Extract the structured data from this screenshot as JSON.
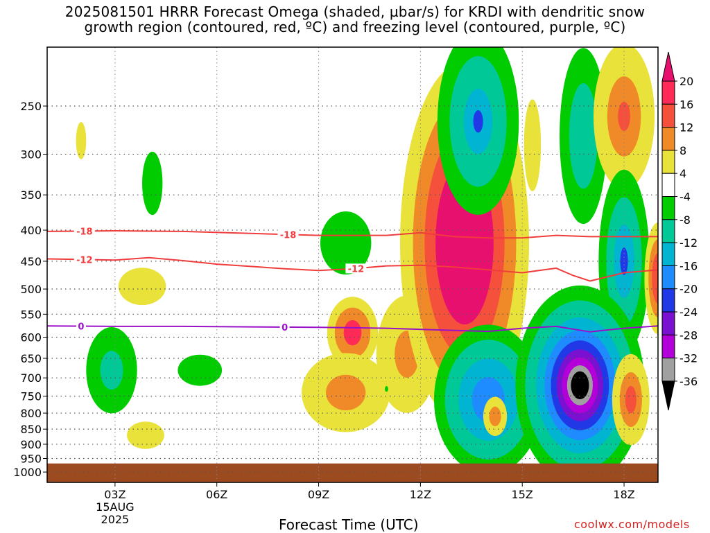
{
  "title": {
    "line1": "2025081501 HRRR Forecast Omega (shaded, µbar/s) for KRDI with dendritic snow",
    "line2": "growth region (contoured, red, ºC) and freezing level (contoured, purple, ºC)"
  },
  "credit": "coolwx.com/models",
  "chart_data": {
    "type": "heatmap",
    "title": "2025081501 HRRR Forecast Omega (shaded, µbar/s) for KRDI with dendritic snow growth region (contoured, red, ºC) and freezing level (contoured, purple, ºC)",
    "xlabel": "Forecast Time (UTC)",
    "ylabel": "",
    "x_range_hours": [
      1,
      19
    ],
    "y_range_mb": [
      200,
      1040
    ],
    "y_scale": "log",
    "grid": true,
    "x_ticks": [
      {
        "hour": 3,
        "label": "03Z",
        "sub1": "15AUG",
        "sub2": "2025"
      },
      {
        "hour": 6,
        "label": "06Z"
      },
      {
        "hour": 9,
        "label": "09Z"
      },
      {
        "hour": 12,
        "label": "12Z"
      },
      {
        "hour": 15,
        "label": "15Z"
      },
      {
        "hour": 18,
        "label": "18Z"
      }
    ],
    "y_ticks": [
      250,
      300,
      350,
      400,
      450,
      500,
      550,
      600,
      650,
      700,
      750,
      800,
      850,
      900,
      950,
      1000
    ],
    "colorbar": {
      "levels": [
        20,
        16,
        12,
        8,
        4,
        -4,
        -8,
        -12,
        -16,
        -20,
        -24,
        -28,
        -32,
        -36
      ],
      "bins": [
        {
          "from": 16,
          "to": 20,
          "color": "#ff2a55"
        },
        {
          "from": 12,
          "to": 16,
          "color": "#f4503c"
        },
        {
          "from": 8,
          "to": 12,
          "color": "#f08a28"
        },
        {
          "from": 4,
          "to": 8,
          "color": "#f0b830"
        },
        {
          "from": -4,
          "to": 4,
          "color": "#ffffff"
        },
        {
          "from": -8,
          "to": -4,
          "color": "#00cc00"
        },
        {
          "from": -12,
          "to": -8,
          "color": "#00c896"
        },
        {
          "from": -16,
          "to": -12,
          "color": "#00b4d2"
        },
        {
          "from": -20,
          "to": -16,
          "color": "#1e8cff"
        },
        {
          "from": -24,
          "to": -20,
          "color": "#2038e6"
        },
        {
          "from": -28,
          "to": -24,
          "color": "#7a10d0"
        },
        {
          "from": -32,
          "to": -28,
          "color": "#b400d8"
        },
        {
          "from": -36,
          "to": -32,
          "color": "#a0a0a0"
        }
      ],
      "top_arrow_color": "#e8106e",
      "bottom_arrow_color": "#000000",
      "pos4_color": "#e8e23a"
    },
    "ground_color": "#9c4a20",
    "ground_top_mb": 968,
    "omega_blobs": [
      {
        "cx": 2.0,
        "cy": 285,
        "rx": 0.15,
        "ry": 20,
        "levels": [
          {
            "c": "#e8e23a",
            "s": 1
          }
        ]
      },
      {
        "cx": 4.1,
        "cy": 335,
        "rx": 0.3,
        "ry": 40,
        "levels": [
          {
            "c": "#00cc00",
            "s": 1
          }
        ]
      },
      {
        "cx": 3.8,
        "cy": 495,
        "rx": 0.7,
        "ry": 35,
        "levels": [
          {
            "c": "#e8e23a",
            "s": 1
          }
        ]
      },
      {
        "cx": 2.9,
        "cy": 680,
        "rx": 0.75,
        "ry": 110,
        "levels": [
          {
            "c": "#00cc00",
            "s": 1
          },
          {
            "c": "#00c896",
            "s": 0.45
          }
        ]
      },
      {
        "cx": 5.5,
        "cy": 680,
        "rx": 0.65,
        "ry": 40,
        "levels": [
          {
            "c": "#00cc00",
            "s": 1
          }
        ]
      },
      {
        "cx": 3.9,
        "cy": 870,
        "rx": 0.55,
        "ry": 45,
        "levels": [
          {
            "c": "#e8e23a",
            "s": 1
          }
        ]
      },
      {
        "cx": 9.8,
        "cy": 420,
        "rx": 0.75,
        "ry": 50,
        "levels": [
          {
            "c": "#00cc00",
            "s": 1
          }
        ]
      },
      {
        "cx": 10.0,
        "cy": 590,
        "rx": 0.75,
        "ry": 80,
        "levels": [
          {
            "c": "#e8e23a",
            "s": 1
          },
          {
            "c": "#f08a28",
            "s": 0.7
          },
          {
            "c": "#ff2a55",
            "s": 0.35
          }
        ]
      },
      {
        "cx": 9.8,
        "cy": 740,
        "rx": 1.3,
        "ry": 110,
        "levels": [
          {
            "c": "#e8e23a",
            "s": 1
          },
          {
            "c": "#f08a28",
            "s": 0.45
          }
        ]
      },
      {
        "cx": 11.6,
        "cy": 640,
        "rx": 0.9,
        "ry": 140,
        "levels": [
          {
            "c": "#e8e23a",
            "s": 1
          },
          {
            "c": "#f08a28",
            "s": 0.4
          }
        ]
      },
      {
        "cx": 13.3,
        "cy": 420,
        "rx": 1.9,
        "ry": 250,
        "levels": [
          {
            "c": "#e8e23a",
            "s": 1
          },
          {
            "c": "#f08a28",
            "s": 0.8
          },
          {
            "c": "#f4503c",
            "s": 0.62
          },
          {
            "c": "#e8106e",
            "s": 0.45
          }
        ]
      },
      {
        "cx": 13.7,
        "cy": 265,
        "rx": 1.2,
        "ry": 90,
        "levels": [
          {
            "c": "#00cc00",
            "s": 1
          },
          {
            "c": "#00c896",
            "s": 0.7
          },
          {
            "c": "#00b4d2",
            "s": 0.35
          },
          {
            "c": "#2038e6",
            "s": 0.12
          }
        ]
      },
      {
        "cx": 14.0,
        "cy": 760,
        "rx": 1.6,
        "ry": 210,
        "levels": [
          {
            "c": "#00cc00",
            "s": 1
          },
          {
            "c": "#00c896",
            "s": 0.8
          },
          {
            "c": "#00b4d2",
            "s": 0.55
          },
          {
            "c": "#1e8cff",
            "s": 0.3
          }
        ]
      },
      {
        "cx": 14.2,
        "cy": 810,
        "rx": 0.35,
        "ry": 60,
        "levels": [
          {
            "c": "#e8e23a",
            "s": 1
          },
          {
            "c": "#f08a28",
            "s": 0.5
          }
        ]
      },
      {
        "cx": 15.3,
        "cy": 290,
        "rx": 0.25,
        "ry": 50,
        "levels": [
          {
            "c": "#e8e23a",
            "s": 1
          }
        ]
      },
      {
        "cx": 16.8,
        "cy": 280,
        "rx": 0.7,
        "ry": 90,
        "levels": [
          {
            "c": "#00cc00",
            "s": 1
          },
          {
            "c": "#00c896",
            "s": 0.6
          }
        ]
      },
      {
        "cx": 18.0,
        "cy": 260,
        "rx": 0.9,
        "ry": 70,
        "levels": [
          {
            "c": "#e8e23a",
            "s": 1
          },
          {
            "c": "#f08a28",
            "s": 0.55
          },
          {
            "c": "#f4503c",
            "s": 0.2
          }
        ]
      },
      {
        "cx": 18.0,
        "cy": 450,
        "rx": 0.75,
        "ry": 150,
        "levels": [
          {
            "c": "#00cc00",
            "s": 1
          },
          {
            "c": "#00c896",
            "s": 0.7
          },
          {
            "c": "#00b4d2",
            "s": 0.4
          },
          {
            "c": "#2038e6",
            "s": 0.15
          }
        ]
      },
      {
        "cx": 16.7,
        "cy": 720,
        "rx": 1.9,
        "ry": 260,
        "levels": [
          {
            "c": "#00cc00",
            "s": 1
          },
          {
            "c": "#00c896",
            "s": 0.85
          },
          {
            "c": "#00b4d2",
            "s": 0.68
          },
          {
            "c": "#1e8cff",
            "s": 0.55
          },
          {
            "c": "#2038e6",
            "s": 0.45
          },
          {
            "c": "#7a10d0",
            "s": 0.36
          },
          {
            "c": "#b400d8",
            "s": 0.28
          },
          {
            "c": "#a0a0a0",
            "s": 0.2
          },
          {
            "c": "#000000",
            "s": 0.14
          }
        ]
      },
      {
        "cx": 18.2,
        "cy": 760,
        "rx": 0.55,
        "ry": 130,
        "levels": [
          {
            "c": "#e8e23a",
            "s": 1
          },
          {
            "c": "#f08a28",
            "s": 0.6
          },
          {
            "c": "#f4503c",
            "s": 0.3
          }
        ]
      },
      {
        "cx": 19.0,
        "cy": 480,
        "rx": 0.4,
        "ry": 100,
        "levels": [
          {
            "c": "#e8e23a",
            "s": 1
          },
          {
            "c": "#f08a28",
            "s": 0.7
          },
          {
            "c": "#f4503c",
            "s": 0.45
          }
        ]
      },
      {
        "cx": 11.0,
        "cy": 730,
        "rx": 0.05,
        "ry": 8,
        "levels": [
          {
            "c": "#00cc00",
            "s": 1
          }
        ]
      }
    ],
    "contours": [
      {
        "name": "-18",
        "color": "#f03c3c",
        "width": 2,
        "x": [
          1,
          3,
          5,
          7,
          9,
          11,
          12,
          13,
          14,
          15,
          16,
          17,
          18,
          19
        ],
        "y": [
          402,
          401,
          402,
          405,
          408,
          408,
          404,
          410,
          412,
          412,
          408,
          410,
          410,
          410
        ],
        "labels": [
          {
            "x": 2.1
          },
          {
            "x": 8.1
          }
        ]
      },
      {
        "name": "-12",
        "color": "#f03c3c",
        "width": 2,
        "x": [
          1,
          3,
          4,
          5,
          6,
          7,
          8,
          9,
          10,
          11,
          12,
          13,
          14,
          15,
          16,
          16.5,
          17,
          18,
          19
        ],
        "y": [
          446,
          448,
          444,
          449,
          455,
          459,
          463,
          466,
          463,
          458,
          457,
          460,
          465,
          470,
          462,
          475,
          485,
          470,
          465
        ],
        "labels": [
          {
            "x": 2.1
          },
          {
            "x": 10.1
          }
        ]
      },
      {
        "name": "0",
        "color": "#9a10c8",
        "width": 2,
        "x": [
          1,
          3,
          5,
          7,
          9,
          11,
          13,
          14,
          15,
          16,
          17,
          18,
          19
        ],
        "y": [
          575,
          576,
          576,
          577,
          578,
          580,
          585,
          587,
          580,
          576,
          588,
          580,
          575
        ],
        "labels": [
          {
            "x": 2.0
          },
          {
            "x": 8.0
          }
        ]
      }
    ]
  }
}
